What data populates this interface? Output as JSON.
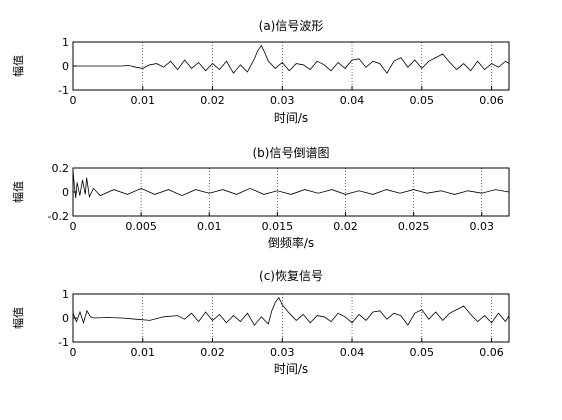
{
  "chart_data": [
    {
      "type": "line",
      "title": "(a)信号波形",
      "xlabel": "时间/s",
      "ylabel": "幅值",
      "xlim": [
        0,
        0.0625
      ],
      "ylim": [
        -1,
        1
      ],
      "xticks": [
        0,
        0.01,
        0.02,
        0.03,
        0.04,
        0.05,
        0.06
      ],
      "xtick_labels": [
        "0",
        "0.01",
        "0.02",
        "0.03",
        "0.04",
        "0.05",
        "0.06"
      ],
      "yticks": [
        -1,
        0,
        1
      ],
      "ytick_labels": [
        "-1",
        "0",
        "1"
      ],
      "grid": "x dotted",
      "series": [
        {
          "x": [
            0,
            0.007,
            0.008,
            0.009,
            0.01,
            0.011,
            0.012,
            0.013,
            0.014,
            0.015,
            0.016,
            0.017,
            0.018,
            0.019,
            0.02,
            0.021,
            0.022,
            0.023,
            0.024,
            0.025,
            0.026,
            0.0265,
            0.027,
            0.0275,
            0.028,
            0.029,
            0.03,
            0.031,
            0.032,
            0.033,
            0.034,
            0.035,
            0.036,
            0.037,
            0.038,
            0.039,
            0.04,
            0.041,
            0.042,
            0.043,
            0.044,
            0.045,
            0.046,
            0.047,
            0.048,
            0.049,
            0.05,
            0.051,
            0.052,
            0.053,
            0.054,
            0.055,
            0.056,
            0.057,
            0.058,
            0.059,
            0.06,
            0.061,
            0.062,
            0.0625
          ],
          "y": [
            0,
            0,
            0.02,
            -0.05,
            -0.1,
            0.05,
            0.1,
            -0.05,
            0.2,
            -0.15,
            0.25,
            -0.1,
            0.15,
            -0.2,
            0.1,
            -0.15,
            0.2,
            -0.3,
            0.05,
            -0.25,
            0.3,
            0.65,
            0.85,
            0.55,
            0.2,
            -0.1,
            0.15,
            -0.2,
            0.1,
            0.05,
            -0.15,
            0.2,
            0.05,
            -0.2,
            0.15,
            -0.1,
            0.25,
            0.3,
            -0.05,
            0.2,
            0.1,
            -0.3,
            0.2,
            0.35,
            -0.05,
            0.25,
            -0.1,
            0.2,
            0.35,
            0.5,
            0.15,
            -0.15,
            0.1,
            -0.2,
            0.2,
            -0.15,
            0.1,
            -0.05,
            0.2,
            0.1
          ]
        }
      ]
    },
    {
      "type": "line",
      "title": "(b)信号倒谱图",
      "xlabel": "倒频率/s",
      "ylabel": "幅值",
      "xlim": [
        0,
        0.032
      ],
      "ylim": [
        -0.2,
        0.2
      ],
      "xticks": [
        0,
        0.005,
        0.01,
        0.015,
        0.02,
        0.025,
        0.03
      ],
      "xtick_labels": [
        "0",
        "0.005",
        "0.01",
        "0.015",
        "0.02",
        "0.025",
        "0.03"
      ],
      "yticks": [
        -0.2,
        0,
        0.2
      ],
      "ytick_labels": [
        "-0.2",
        "0",
        "0.2"
      ],
      "grid": "x dotted",
      "series": [
        {
          "x": [
            0,
            0.0001,
            0.0002,
            0.0003,
            0.0005,
            0.0007,
            0.0009,
            0.001,
            0.0012,
            0.0015,
            0.002,
            0.003,
            0.004,
            0.005,
            0.006,
            0.007,
            0.008,
            0.009,
            0.01,
            0.011,
            0.012,
            0.013,
            0.014,
            0.015,
            0.016,
            0.017,
            0.018,
            0.019,
            0.02,
            0.021,
            0.022,
            0.023,
            0.024,
            0.025,
            0.026,
            0.027,
            0.028,
            0.029,
            0.03,
            0.031,
            0.032
          ],
          "y": [
            0.18,
            0.05,
            -0.05,
            0.08,
            -0.03,
            0.1,
            -0.02,
            0.12,
            -0.04,
            0.03,
            -0.03,
            0.02,
            -0.02,
            0.03,
            -0.02,
            0.02,
            -0.03,
            0.02,
            -0.01,
            0.02,
            -0.02,
            0.03,
            -0.02,
            0.01,
            -0.02,
            0.02,
            -0.01,
            0.02,
            -0.02,
            0.01,
            -0.02,
            0.02,
            -0.01,
            0.02,
            -0.01,
            0.01,
            -0.02,
            0.01,
            -0.01,
            0.02,
            0
          ]
        }
      ]
    },
    {
      "type": "line",
      "title": "(c)恢复信号",
      "xlabel": "时间/s",
      "ylabel": "幅值",
      "xlim": [
        0,
        0.0625
      ],
      "ylim": [
        -1,
        1
      ],
      "xticks": [
        0,
        0.01,
        0.02,
        0.03,
        0.04,
        0.05,
        0.06
      ],
      "xtick_labels": [
        "0",
        "0.01",
        "0.02",
        "0.03",
        "0.04",
        "0.05",
        "0.06"
      ],
      "yticks": [
        -1,
        0,
        1
      ],
      "ytick_labels": [
        "-1",
        "0",
        "1"
      ],
      "grid": "x dotted",
      "series": [
        {
          "x": [
            0,
            0.0005,
            0.001,
            0.0015,
            0.002,
            0.0025,
            0.003,
            0.005,
            0.007,
            0.009,
            0.011,
            0.013,
            0.015,
            0.016,
            0.017,
            0.018,
            0.019,
            0.02,
            0.021,
            0.022,
            0.023,
            0.024,
            0.025,
            0.026,
            0.027,
            0.028,
            0.0285,
            0.029,
            0.0295,
            0.03,
            0.031,
            0.032,
            0.033,
            0.034,
            0.035,
            0.036,
            0.037,
            0.038,
            0.039,
            0.04,
            0.041,
            0.042,
            0.043,
            0.044,
            0.045,
            0.046,
            0.047,
            0.048,
            0.049,
            0.05,
            0.051,
            0.052,
            0.053,
            0.054,
            0.055,
            0.056,
            0.057,
            0.058,
            0.059,
            0.06,
            0.061,
            0.062,
            0.0625
          ],
          "y": [
            0.2,
            -0.15,
            0.25,
            -0.2,
            0.3,
            0.05,
            0,
            0.02,
            0,
            -0.05,
            -0.1,
            0.05,
            0.1,
            -0.05,
            0.2,
            -0.15,
            0.25,
            -0.1,
            0.15,
            -0.2,
            0.1,
            -0.15,
            0.2,
            -0.3,
            0.05,
            -0.25,
            0.3,
            0.65,
            0.85,
            0.55,
            0.2,
            -0.1,
            0.15,
            -0.2,
            0.1,
            0.05,
            -0.15,
            0.2,
            0.05,
            -0.2,
            0.15,
            -0.1,
            0.25,
            0.3,
            -0.05,
            0.2,
            0.1,
            -0.3,
            0.2,
            0.35,
            -0.05,
            0.25,
            -0.1,
            0.2,
            0.35,
            0.5,
            0.15,
            -0.15,
            0.1,
            -0.2,
            0.2,
            -0.15,
            0.1
          ]
        }
      ]
    }
  ]
}
